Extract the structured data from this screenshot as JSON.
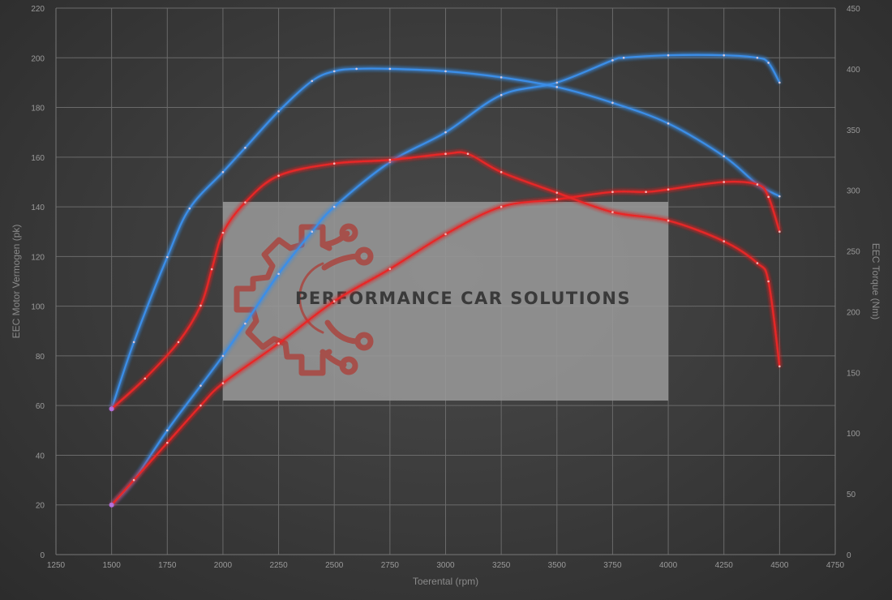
{
  "chart_data": {
    "type": "line",
    "xlabel": "Toerental (rpm)",
    "ylabel_left": "EEC Motor Vermogen (pk)",
    "ylabel_right": "EEC Torque (Nm)",
    "xlim": [
      1250,
      4750
    ],
    "ylim_left": [
      0,
      220
    ],
    "ylim_right": [
      0,
      450
    ],
    "x_ticks": [
      1250,
      1500,
      1750,
      2000,
      2250,
      2500,
      2750,
      3000,
      3250,
      3500,
      3750,
      4000,
      4250,
      4500,
      4750
    ],
    "y_ticks_left": [
      0,
      20,
      40,
      60,
      80,
      100,
      120,
      140,
      160,
      180,
      200,
      220
    ],
    "y_ticks_right": [
      0,
      50,
      100,
      150,
      200,
      250,
      300,
      350,
      400,
      450
    ],
    "grid": true,
    "series": [
      {
        "axis": "left",
        "color": "#3b8ee8",
        "x": [
          1500,
          1600,
          1750,
          1900,
          2000,
          2100,
          2250,
          2400,
          2500,
          2750,
          3000,
          3250,
          3500,
          3750,
          3800,
          4000,
          4250,
          4400,
          4450,
          4500
        ],
        "y": [
          20,
          30,
          50,
          68,
          80,
          93,
          113,
          130,
          140,
          158,
          170,
          185,
          190,
          199,
          200,
          201,
          201,
          200,
          198,
          190
        ]
      },
      {
        "axis": "right",
        "color": "#3b8ee8",
        "x": [
          1500,
          1600,
          1750,
          1850,
          2000,
          2100,
          2250,
          2400,
          2500,
          2600,
          2750,
          3000,
          3250,
          3500,
          3750,
          4000,
          4250,
          4400,
          4500
        ],
        "y": [
          120,
          175,
          245,
          285,
          315,
          335,
          365,
          390,
          398,
          400,
          400,
          398,
          393,
          385,
          372,
          355,
          328,
          305,
          295
        ]
      },
      {
        "axis": "left",
        "color": "#e82828",
        "x": [
          1500,
          1600,
          1750,
          1900,
          2000,
          2250,
          2500,
          2750,
          3000,
          3250,
          3500,
          3750,
          3900,
          4000,
          4250,
          4400,
          4450,
          4500
        ],
        "y": [
          20,
          30,
          45,
          60,
          69,
          85,
          102,
          115,
          129,
          140,
          143,
          146,
          146,
          147,
          150,
          149,
          144,
          130
        ]
      },
      {
        "axis": "right",
        "color": "#e82828",
        "x": [
          1500,
          1650,
          1800,
          1900,
          1950,
          2000,
          2100,
          2250,
          2500,
          2750,
          3000,
          3100,
          3250,
          3500,
          3750,
          4000,
          4250,
          4400,
          4450,
          4500
        ],
        "y": [
          120,
          145,
          175,
          205,
          235,
          265,
          290,
          312,
          322,
          325,
          330,
          330,
          315,
          298,
          282,
          275,
          258,
          240,
          225,
          155
        ]
      }
    ]
  },
  "watermark": {
    "text": "PERFORMANCE CAR SOLUTIONS",
    "color": "#a84a44",
    "box_color": "#9a9a9a",
    "box_x": [
      2000,
      4000
    ],
    "box_y_left": [
      62,
      142
    ]
  }
}
